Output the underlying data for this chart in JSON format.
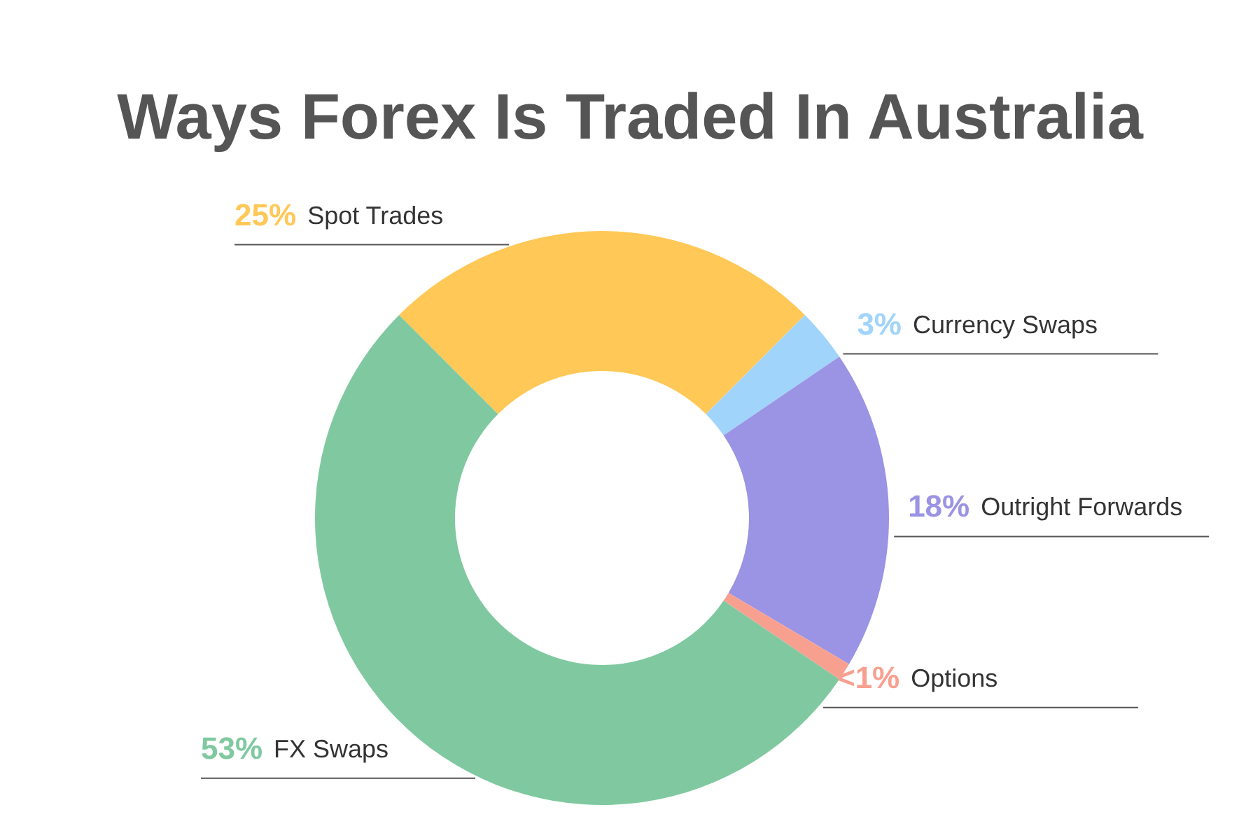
{
  "chart_data": {
    "type": "donut",
    "title": "Ways Forex Is Traded In Australia",
    "categories": [
      "Spot Trades",
      "Currency Swaps",
      "Outright Forwards",
      "Options",
      "FX Swaps"
    ],
    "values": [
      25,
      3,
      18,
      1,
      53
    ],
    "value_labels": [
      "25%",
      "3%",
      "18%",
      "<1%",
      "53%"
    ],
    "colors": [
      "#ffc857",
      "#a0d4fa",
      "#9b93e4",
      "#f8a090",
      "#80c9a0"
    ],
    "legend": false
  }
}
